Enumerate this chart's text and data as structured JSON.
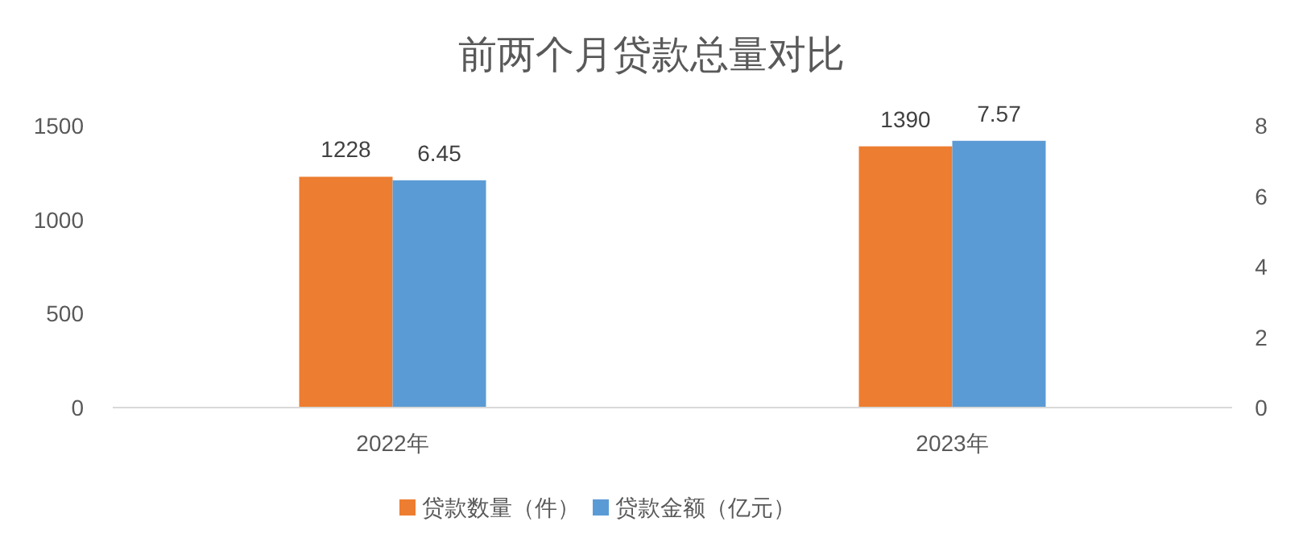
{
  "chart_data": {
    "type": "bar",
    "title": "前两个月贷款总量对比",
    "categories": [
      "2022年",
      "2023年"
    ],
    "series": [
      {
        "name": "贷款数量（件）",
        "color": "#ed7d31",
        "values": [
          1228,
          1390
        ]
      },
      {
        "name": "贷款金额（亿元）",
        "color": "#5b9bd5",
        "values": [
          6.45,
          7.57
        ],
        "axis": "y2"
      }
    ],
    "ylim": [
      0,
      1500
    ],
    "yticks": [
      0,
      500,
      1000,
      1500
    ],
    "y2lim": [
      0,
      8
    ],
    "y2ticks": [
      0,
      2,
      4,
      6,
      8
    ],
    "data_labels": true,
    "legend": "bottom",
    "grid": false
  }
}
